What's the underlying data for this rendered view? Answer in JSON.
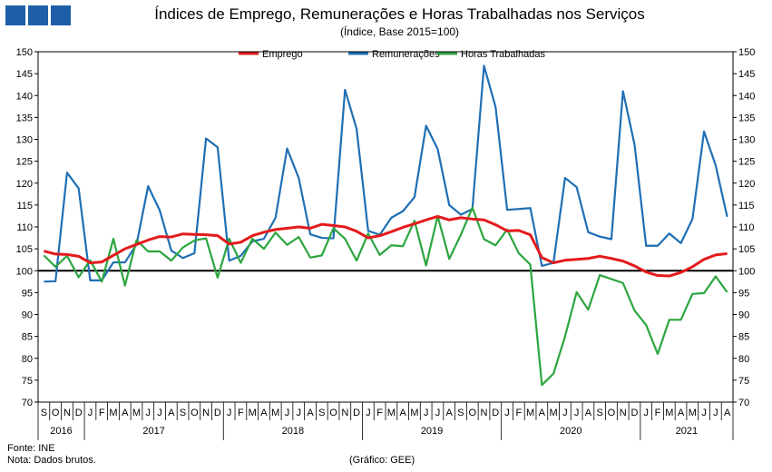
{
  "chart_data": {
    "type": "line",
    "title": "Índices de Emprego, Remunerações e Horas Trabalhadas nos Serviços",
    "subtitle": "(Índice, Base 2015=100)",
    "ylim": [
      70,
      150
    ],
    "yticks": [
      70,
      75,
      80,
      85,
      90,
      95,
      100,
      105,
      110,
      115,
      120,
      125,
      130,
      135,
      140,
      145,
      150
    ],
    "reference_line": 100,
    "grid": false,
    "legend_position": "top-center",
    "x_month_labels": [
      "S",
      "O",
      "N",
      "D",
      "J",
      "F",
      "M",
      "A",
      "M",
      "J",
      "J",
      "A",
      "S",
      "O",
      "N",
      "D",
      "J",
      "F",
      "M",
      "A",
      "M",
      "J",
      "J",
      "A",
      "S",
      "O",
      "N",
      "D",
      "J",
      "F",
      "M",
      "A",
      "M",
      "J",
      "J",
      "A",
      "S",
      "O",
      "N",
      "D",
      "J",
      "F",
      "M",
      "A",
      "M",
      "J",
      "J",
      "A",
      "S",
      "O",
      "N",
      "D",
      "J",
      "F",
      "M",
      "A",
      "M",
      "J",
      "J",
      "A"
    ],
    "x_year_groups": [
      {
        "label": "2016",
        "count": 4
      },
      {
        "label": "2017",
        "count": 12
      },
      {
        "label": "2018",
        "count": 12
      },
      {
        "label": "2019",
        "count": 12
      },
      {
        "label": "2020",
        "count": 12
      },
      {
        "label": "2021",
        "count": 8
      }
    ],
    "series": [
      {
        "name": "Emprego",
        "color": "#e31a1c",
        "values": [
          104.5,
          103.8,
          103.7,
          103.3,
          101.8,
          102.0,
          103.5,
          105.0,
          106.0,
          107.0,
          107.8,
          107.7,
          108.4,
          108.3,
          108.2,
          108.0,
          106.1,
          106.5,
          108.0,
          108.8,
          109.4,
          109.7,
          110.0,
          109.7,
          110.6,
          110.3,
          110.0,
          109.0,
          107.5,
          108.0,
          108.9,
          109.9,
          110.7,
          111.6,
          112.4,
          111.6,
          112.1,
          111.8,
          111.6,
          110.5,
          109.1,
          109.2,
          108.2,
          103.0,
          101.8,
          102.4,
          102.6,
          102.8,
          103.3,
          102.8,
          102.2,
          101.1,
          99.7,
          98.9,
          98.8,
          99.6,
          100.9,
          102.6,
          103.6,
          103.9
        ]
      },
      {
        "name": "Remunerações",
        "color": "#1f6fb4",
        "values": [
          97.5,
          97.6,
          122.4,
          118.8,
          97.8,
          97.8,
          101.9,
          101.9,
          106.0,
          119.3,
          113.8,
          104.6,
          102.9,
          104.0,
          130.2,
          128.2,
          102.3,
          103.4,
          106.7,
          107.3,
          112.1,
          127.9,
          121.2,
          108.3,
          107.5,
          107.4,
          141.3,
          132.4,
          109.1,
          108.2,
          112.1,
          113.6,
          116.8,
          133.1,
          127.8,
          115.0,
          112.8,
          114.1,
          146.8,
          137.4,
          113.9,
          114.1,
          114.3,
          101.1,
          101.8,
          121.2,
          119.1,
          108.8,
          107.8,
          107.2,
          141.0,
          128.8,
          105.7,
          105.7,
          108.5,
          106.3,
          111.8,
          131.8,
          124.1,
          112.3
        ]
      },
      {
        "name": "Horas Trabalhadas",
        "color": "#2ca53e",
        "values": [
          103.5,
          100.9,
          103.4,
          98.5,
          102.4,
          97.5,
          107.3,
          96.6,
          107.0,
          104.4,
          104.4,
          102.3,
          105.3,
          106.9,
          107.4,
          98.4,
          107.3,
          101.8,
          107.3,
          105.0,
          108.7,
          105.9,
          107.7,
          103.0,
          103.5,
          109.7,
          107.3,
          102.3,
          108.5,
          103.6,
          105.8,
          105.6,
          111.4,
          101.2,
          112.5,
          102.7,
          108.2,
          114.4,
          107.2,
          105.8,
          109.4,
          104.0,
          101.4,
          73.9,
          76.5,
          85.0,
          95.1,
          91.1,
          99.0,
          98.1,
          97.2,
          90.9,
          87.6,
          81.0,
          88.8,
          88.8,
          94.7,
          94.9,
          98.7,
          95.1
        ]
      }
    ]
  },
  "footer": {
    "source": "Fonte: INE",
    "note": "Nota: Dados brutos.",
    "credit": "(Gráfico: GEE)"
  }
}
